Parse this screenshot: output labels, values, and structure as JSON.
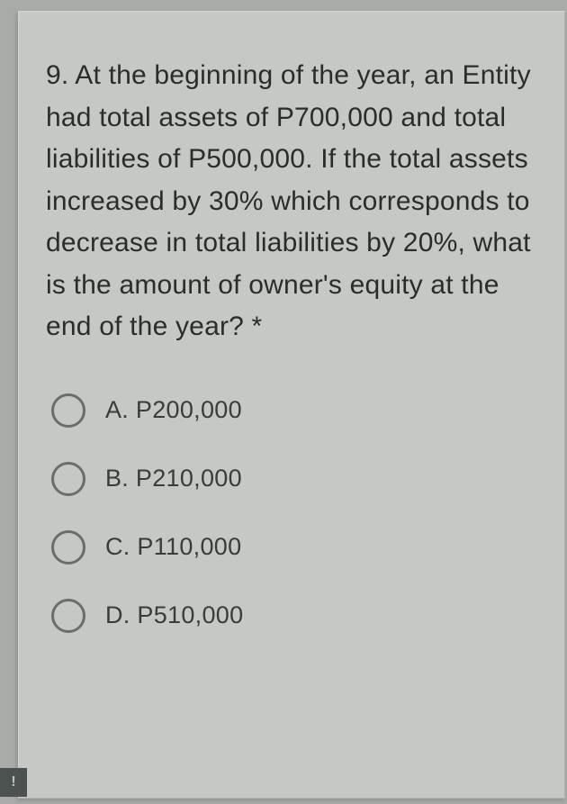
{
  "question": {
    "text": "9. At the beginning of the year, an Entity had total assets of P700,000 and total liabilities of P500,000. If the total assets increased by 30% which corresponds to decrease in total liabilities by 20%, what is the amount of owner's equity at the end of the year? *",
    "text_color": "#2b2d2b",
    "fontsize": 30
  },
  "options": [
    {
      "label": "A. P200,000"
    },
    {
      "label": "B. P210,000"
    },
    {
      "label": "C. P110,000"
    },
    {
      "label": "D. P510,000"
    }
  ],
  "styling": {
    "page_background": "#a8aba8",
    "card_background": "#c6c8c5",
    "radio_border": "#6a6d6a",
    "option_text_color": "#3a3c3a",
    "option_fontsize": 27,
    "badge_background": "#4c5250",
    "badge_text_color": "#c0c2bf"
  },
  "badge": {
    "glyph": "!"
  }
}
